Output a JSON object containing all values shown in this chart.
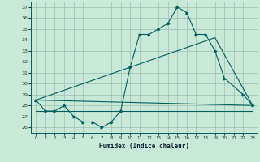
{
  "xlabel": "Humidex (Indice chaleur)",
  "xlim": [
    -0.5,
    23.5
  ],
  "ylim": [
    25.5,
    37.5
  ],
  "yticks": [
    26,
    27,
    28,
    29,
    30,
    31,
    32,
    33,
    34,
    35,
    36,
    37
  ],
  "xticks": [
    0,
    1,
    2,
    3,
    4,
    5,
    6,
    7,
    8,
    9,
    10,
    11,
    12,
    13,
    14,
    15,
    16,
    17,
    18,
    19,
    20,
    21,
    22,
    23
  ],
  "bg_color": "#c8e8d8",
  "grid_color": "#9bbfaf",
  "line_color": "#006060",
  "line1_x": [
    0,
    1,
    2,
    3,
    4,
    5,
    6,
    7,
    8,
    9,
    10,
    11,
    12,
    13,
    14,
    15,
    16,
    17,
    18,
    19,
    20,
    22,
    23
  ],
  "line1_y": [
    28.5,
    27.5,
    27.5,
    28.0,
    27.0,
    26.5,
    26.5,
    26.0,
    26.5,
    27.5,
    31.5,
    34.5,
    34.5,
    35.0,
    35.5,
    37.0,
    36.5,
    34.5,
    34.5,
    33.0,
    30.5,
    29.0,
    28.0
  ],
  "line2_x": [
    0,
    9,
    15,
    23
  ],
  "line2_y": [
    27.5,
    27.5,
    27.5,
    27.5
  ],
  "line3_x": [
    0,
    23
  ],
  "line3_y": [
    28.5,
    28.0
  ],
  "line4_x": [
    0,
    19,
    23
  ],
  "line4_y": [
    28.5,
    34.2,
    28.0
  ]
}
